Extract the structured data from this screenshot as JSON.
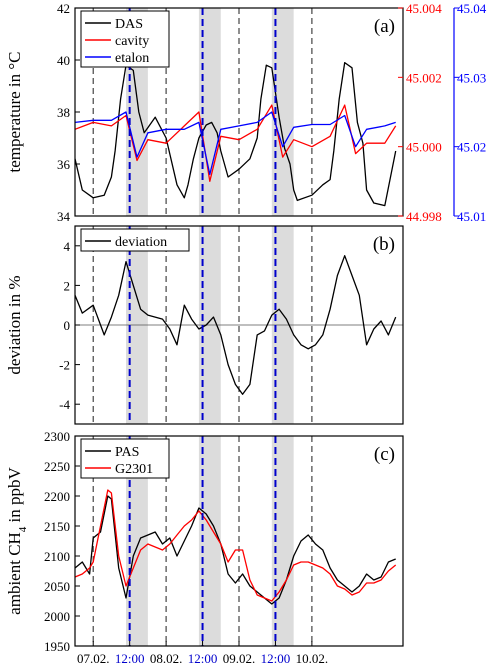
{
  "chart_data": [
    {
      "panel": "(a)",
      "type": "line",
      "ylabel": "temperature in °C",
      "ylim": [
        34,
        42
      ],
      "yticks": [
        "34",
        "36",
        "38",
        "40",
        "42"
      ],
      "ylim_right1": [
        44.998,
        45.004
      ],
      "yticks_right1": [
        "44.998",
        "45.000",
        "45.002",
        "45.004"
      ],
      "ylim_right2": [
        45.01,
        45.04
      ],
      "yticks_right2": [
        "45.01",
        "45.02",
        "45.03",
        "45.04"
      ],
      "legend": [
        "DAS",
        "cavity",
        "etalon"
      ],
      "legend_position": "top-left",
      "series": [
        {
          "name": "DAS",
          "axis": "left",
          "color": "#000000",
          "x": [
            0.0,
            0.2,
            0.5,
            0.8,
            1.0,
            1.1,
            1.25,
            1.4,
            1.6,
            1.75,
            1.9,
            2.0,
            2.2,
            2.5,
            2.8,
            3.0,
            3.1,
            3.25,
            3.4,
            3.6,
            3.75,
            3.9,
            4.0,
            4.2,
            4.5,
            4.8,
            5.0,
            5.1,
            5.25,
            5.4,
            5.6,
            5.75,
            5.9,
            6.0,
            6.1,
            6.5,
            6.8,
            7.0,
            7.1,
            7.25,
            7.4,
            7.6,
            7.75,
            7.9,
            8.0,
            8.2,
            8.5,
            8.8
          ],
          "y": [
            36.2,
            35.0,
            34.7,
            34.8,
            35.5,
            36.5,
            38.5,
            39.8,
            39.6,
            38.0,
            37.2,
            37.4,
            37.8,
            37.0,
            35.2,
            34.7,
            35.2,
            36.2,
            37.0,
            37.5,
            37.6,
            37.2,
            36.5,
            35.5,
            35.8,
            36.2,
            37.0,
            38.5,
            39.8,
            39.7,
            37.8,
            36.6,
            36.0,
            35.0,
            34.6,
            34.8,
            35.2,
            35.4,
            36.5,
            38.5,
            39.9,
            39.7,
            37.6,
            36.8,
            35.0,
            34.5,
            34.4,
            36.5
          ]
        },
        {
          "name": "cavity",
          "axis": "right1",
          "color": "#ff0000",
          "x": [
            0.0,
            0.5,
            1.0,
            1.4,
            1.7,
            2.0,
            2.5,
            3.0,
            3.4,
            3.7,
            4.0,
            4.5,
            5.0,
            5.4,
            5.7,
            6.0,
            6.5,
            7.0,
            7.4,
            7.7,
            8.0,
            8.5,
            8.8
          ],
          "y": [
            45.0005,
            45.0007,
            45.0006,
            45.0009,
            44.9996,
            45.0002,
            45.0001,
            45.0006,
            45.001,
            44.999,
            45.0003,
            45.0002,
            45.0005,
            45.0012,
            44.9997,
            45.0002,
            45.0,
            45.0003,
            45.0012,
            44.9998,
            45.0001,
            45.0001,
            45.0006
          ]
        },
        {
          "name": "etalon",
          "axis": "right2",
          "color": "#0000ff",
          "x": [
            0.0,
            0.5,
            1.0,
            1.4,
            1.7,
            2.0,
            2.5,
            3.0,
            3.4,
            3.7,
            4.0,
            4.5,
            5.0,
            5.4,
            5.7,
            6.0,
            6.5,
            7.0,
            7.4,
            7.7,
            8.0,
            8.5,
            8.8
          ],
          "y": [
            45.0235,
            45.0238,
            45.0238,
            45.025,
            45.0185,
            45.022,
            45.0225,
            45.0225,
            45.0235,
            45.016,
            45.0225,
            45.023,
            45.0235,
            45.025,
            45.02,
            45.0228,
            45.0232,
            45.0232,
            45.0245,
            45.02,
            45.0225,
            45.023,
            45.0235
          ]
        }
      ]
    },
    {
      "panel": "(b)",
      "type": "line",
      "ylabel": "deviation in %",
      "ylim": [
        -5,
        5
      ],
      "yticks": [
        "-4",
        "-2",
        "0",
        "2",
        "4"
      ],
      "legend": [
        "deviation"
      ],
      "legend_position": "top-left",
      "series": [
        {
          "name": "deviation",
          "color": "#000000",
          "x": [
            0.0,
            0.2,
            0.5,
            0.8,
            1.0,
            1.2,
            1.4,
            1.6,
            1.8,
            2.0,
            2.2,
            2.4,
            2.6,
            2.8,
            3.0,
            3.2,
            3.4,
            3.6,
            3.8,
            4.0,
            4.2,
            4.4,
            4.6,
            4.8,
            5.0,
            5.2,
            5.4,
            5.6,
            5.8,
            6.0,
            6.2,
            6.4,
            6.6,
            6.8,
            7.0,
            7.2,
            7.4,
            7.6,
            7.8,
            8.0,
            8.2,
            8.4,
            8.6,
            8.8
          ],
          "y": [
            1.5,
            0.6,
            1.0,
            -0.5,
            0.4,
            1.5,
            3.2,
            2.0,
            0.8,
            0.5,
            0.4,
            0.3,
            -0.2,
            -1.0,
            1.0,
            0.3,
            -0.2,
            0.0,
            0.4,
            -0.5,
            -2.0,
            -3.0,
            -3.5,
            -3.0,
            -0.5,
            -0.3,
            0.5,
            0.8,
            0.3,
            -0.5,
            -1.0,
            -1.2,
            -1.0,
            -0.5,
            0.8,
            2.5,
            3.5,
            2.5,
            1.5,
            -1.0,
            -0.2,
            0.2,
            -0.5,
            0.4
          ]
        }
      ]
    },
    {
      "panel": "(c)",
      "type": "line",
      "ylabel": "ambient CH4 in ppbV",
      "ylim": [
        1950,
        2300
      ],
      "yticks": [
        "1950",
        "2000",
        "2050",
        "2100",
        "2150",
        "2200",
        "2250",
        "2300"
      ],
      "legend": [
        "PAS",
        "G2301"
      ],
      "legend_position": "top-left",
      "xticks": [
        {
          "label": "07.02.",
          "x": 0.5,
          "color": "#000000"
        },
        {
          "label": "12:00",
          "x": 1.5,
          "color": "#0000cc"
        },
        {
          "label": "08.02.",
          "x": 2.5,
          "color": "#000000"
        },
        {
          "label": "12:00",
          "x": 3.5,
          "color": "#0000cc"
        },
        {
          "label": "09.02.",
          "x": 4.5,
          "color": "#000000"
        },
        {
          "label": "12:00",
          "x": 5.5,
          "color": "#0000cc"
        },
        {
          "label": "10.02.",
          "x": 6.5,
          "color": "#000000"
        }
      ],
      "series": [
        {
          "name": "PAS",
          "color": "#000000",
          "x": [
            0.0,
            0.2,
            0.4,
            0.5,
            0.7,
            0.9,
            1.0,
            1.2,
            1.4,
            1.6,
            1.8,
            2.0,
            2.2,
            2.4,
            2.6,
            2.8,
            3.0,
            3.2,
            3.4,
            3.6,
            3.8,
            4.0,
            4.2,
            4.4,
            4.6,
            4.8,
            5.0,
            5.2,
            5.4,
            5.6,
            5.8,
            6.0,
            6.2,
            6.4,
            6.6,
            6.8,
            7.0,
            7.2,
            7.4,
            7.6,
            7.8,
            8.0,
            8.2,
            8.4,
            8.6,
            8.8
          ],
          "y": [
            2080,
            2090,
            2070,
            2130,
            2140,
            2200,
            2195,
            2080,
            2030,
            2100,
            2130,
            2135,
            2140,
            2120,
            2130,
            2100,
            2125,
            2150,
            2180,
            2170,
            2150,
            2120,
            2070,
            2055,
            2070,
            2050,
            2040,
            2030,
            2020,
            2030,
            2060,
            2100,
            2125,
            2135,
            2120,
            2110,
            2080,
            2060,
            2050,
            2040,
            2050,
            2070,
            2060,
            2065,
            2090,
            2095
          ]
        },
        {
          "name": "G2301",
          "color": "#ff0000",
          "x": [
            0.0,
            0.2,
            0.4,
            0.5,
            0.7,
            0.9,
            1.0,
            1.2,
            1.4,
            1.6,
            1.8,
            2.0,
            2.2,
            2.4,
            2.6,
            2.8,
            3.0,
            3.2,
            3.4,
            3.6,
            3.8,
            4.0,
            4.2,
            4.4,
            4.6,
            4.8,
            5.0,
            5.2,
            5.4,
            5.6,
            5.8,
            6.0,
            6.2,
            6.4,
            6.6,
            6.8,
            7.0,
            7.2,
            7.4,
            7.6,
            7.8,
            8.0,
            8.2,
            8.4,
            8.6,
            8.8
          ],
          "y": [
            2065,
            2070,
            2080,
            2090,
            2150,
            2210,
            2205,
            2100,
            2050,
            2080,
            2110,
            2120,
            2115,
            2110,
            2120,
            2135,
            2150,
            2160,
            2175,
            2160,
            2140,
            2120,
            2090,
            2110,
            2110,
            2060,
            2035,
            2030,
            2025,
            2040,
            2060,
            2085,
            2090,
            2090,
            2085,
            2080,
            2070,
            2050,
            2045,
            2035,
            2040,
            2055,
            2055,
            2060,
            2075,
            2085
          ]
        }
      ]
    }
  ],
  "shaded_regions_x": [
    [
      1.4,
      2.0
    ],
    [
      3.4,
      4.0
    ],
    [
      5.4,
      6.0
    ]
  ],
  "black_dashed_x": [
    0.5,
    2.5,
    4.5,
    6.5
  ],
  "blue_dashed_x": [
    1.5,
    3.5,
    5.5
  ],
  "xlim": [
    0,
    9
  ],
  "colors": {
    "left_axis": "#000000",
    "right1_axis": "#ff0000",
    "right2_axis": "#0000ff",
    "shade": "#dcdcdc",
    "blue_dash": "#0000cc"
  }
}
